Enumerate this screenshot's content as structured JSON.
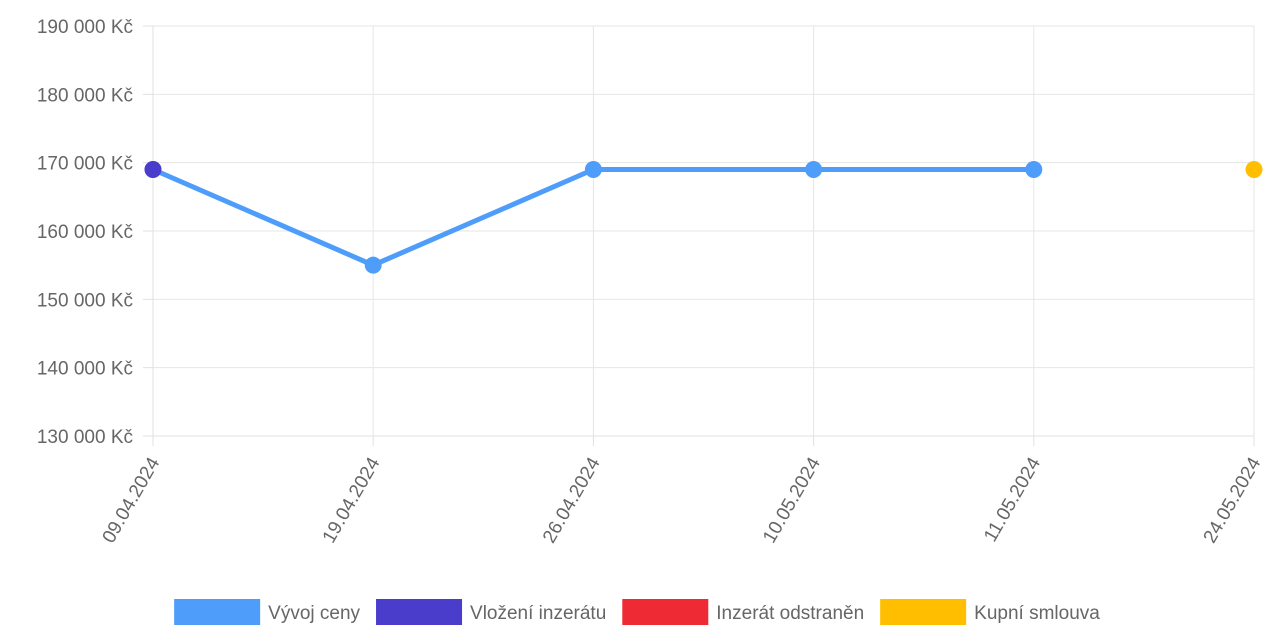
{
  "chart_data": {
    "type": "line",
    "title": "",
    "xlabel": "",
    "ylabel": "",
    "categories": [
      "09.04.2024",
      "19.04.2024",
      "26.04.2024",
      "10.05.2024",
      "11.05.2024",
      "24.05.2024"
    ],
    "ylim": [
      130000,
      190000
    ],
    "y_ticks": [
      {
        "value": 190000,
        "label": "190 000 Kč"
      },
      {
        "value": 180000,
        "label": "180 000 Kč"
      },
      {
        "value": 170000,
        "label": "170 000 Kč"
      },
      {
        "value": 160000,
        "label": "160 000 Kč"
      },
      {
        "value": 150000,
        "label": "150 000 Kč"
      },
      {
        "value": 140000,
        "label": "140 000 Kč"
      },
      {
        "value": 130000,
        "label": "130 000 Kč"
      }
    ],
    "grid": true,
    "legend_position": "bottom",
    "series": [
      {
        "name": "Vývoj ceny",
        "color": "#4f9dfb",
        "style": "line",
        "values": [
          169000,
          155000,
          169000,
          169000,
          169000,
          null
        ]
      },
      {
        "name": "Vložení inzerátu",
        "color": "#4a3dcc",
        "style": "point",
        "values": [
          169000,
          null,
          null,
          null,
          null,
          null
        ]
      },
      {
        "name": "Inzerát odstraněn",
        "color": "#ee2a34",
        "style": "point",
        "values": [
          null,
          null,
          null,
          null,
          null,
          null
        ]
      },
      {
        "name": "Kupní smlouva",
        "color": "#ffbf00",
        "style": "point",
        "values": [
          null,
          null,
          null,
          null,
          null,
          169000
        ]
      }
    ]
  }
}
